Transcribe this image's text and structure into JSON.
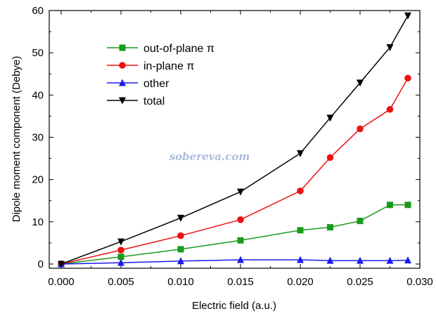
{
  "chart_data": {
    "type": "line",
    "title": "",
    "xlabel": "Electric field (a.u.)",
    "ylabel": "Dipole moment component (Debye)",
    "xlim": [
      -0.001,
      0.03
    ],
    "ylim": [
      -1,
      60
    ],
    "xticks": [
      0.0,
      0.005,
      0.01,
      0.015,
      0.02,
      0.025,
      0.03
    ],
    "xtick_labels": [
      "0.000",
      "0.005",
      "0.010",
      "0.015",
      "0.020",
      "0.025",
      "0.030"
    ],
    "yticks": [
      0,
      10,
      20,
      30,
      40,
      50,
      60
    ],
    "ytick_labels": [
      "0",
      "10",
      "20",
      "30",
      "40",
      "50",
      "60"
    ],
    "grid": false,
    "legend_position": "top-left",
    "x": [
      0.0,
      0.005,
      0.01,
      0.015,
      0.02,
      0.0225,
      0.025,
      0.0275,
      0.029
    ],
    "series": [
      {
        "name": "out-of-plane π",
        "color": "#1a9a1a",
        "marker": "square",
        "values": [
          0.0,
          1.7,
          3.5,
          5.6,
          8.0,
          8.7,
          10.2,
          14.0,
          14.0
        ]
      },
      {
        "name": "in-plane π",
        "color": "#ee1111",
        "marker": "circle",
        "values": [
          0.0,
          3.3,
          6.7,
          10.5,
          17.3,
          25.2,
          32.0,
          36.6,
          44.0
        ]
      },
      {
        "name": "other",
        "color": "#1a1aee",
        "marker": "triangle-up",
        "values": [
          0.0,
          0.3,
          0.7,
          1.0,
          1.0,
          0.8,
          0.8,
          0.8,
          0.9
        ]
      },
      {
        "name": "total",
        "color": "#000000",
        "marker": "triangle-down",
        "values": [
          0.0,
          5.3,
          10.9,
          17.1,
          26.2,
          34.6,
          42.9,
          51.3,
          58.8
        ]
      }
    ],
    "watermark": "sobereva.com"
  }
}
